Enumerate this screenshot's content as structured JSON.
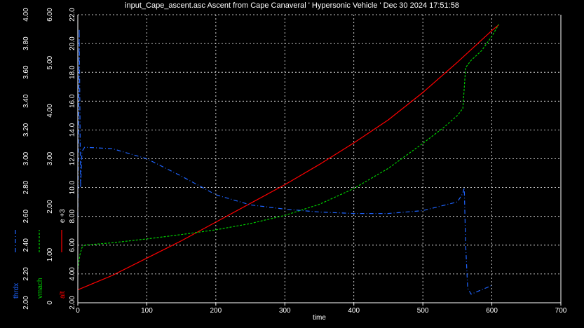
{
  "chart_data": {
    "type": "line",
    "title": "input_Cape_ascent.asc Ascent from Cape Canaveral ' Hypersonic Vehicle ' Dec 30 2024 17:51:58",
    "xlabel": "time",
    "xlim": [
      0,
      700
    ],
    "x_ticks": [
      "0",
      "100",
      "200",
      "300",
      "400",
      "500",
      "600",
      "700"
    ],
    "grid": true,
    "colors": {
      "background": "#000000",
      "axes": "#ffffff",
      "grid": "#ffffff",
      "alt": "#ff0000",
      "vmach": "#00cc00",
      "thrdx": "#1e64ff"
    },
    "axes": [
      {
        "id": "thrdx",
        "label": "thrdx",
        "legend_style": "dash-dot",
        "color": "#1e64ff",
        "lim": [
          2.0,
          4.0
        ],
        "ticks": [
          "2.00",
          "2.20",
          "2.40",
          "2.60",
          "2.80",
          "3.00",
          "3.20",
          "3.40",
          "3.60",
          "3.80",
          "4.00"
        ]
      },
      {
        "id": "vmach",
        "label": "vmach",
        "legend_style": "dashed",
        "color": "#00cc00",
        "lim": [
          0,
          6
        ],
        "ticks": [
          "0",
          "1.00",
          "2.00",
          "3.00",
          "4.00",
          "5.00",
          "6.00"
        ]
      },
      {
        "id": "alt",
        "label": "alt",
        "multiplier": "e +3",
        "legend_style": "solid",
        "color": "#ff0000",
        "lim": [
          2,
          22
        ],
        "ticks": [
          "2.00",
          "4.00",
          "6.00",
          "8.00",
          "10.0",
          "12.0",
          "14.0",
          "16.0",
          "18.0",
          "20.0",
          "22.0"
        ]
      }
    ],
    "series": [
      {
        "name": "alt",
        "axis": "alt",
        "style": "solid",
        "x": [
          0,
          50,
          100,
          150,
          200,
          250,
          300,
          350,
          400,
          450,
          500,
          550,
          600,
          610
        ],
        "y": [
          2.9,
          3.9,
          5.1,
          6.3,
          7.6,
          8.9,
          10.2,
          11.6,
          13.1,
          14.7,
          16.6,
          18.7,
          20.9,
          21.3
        ]
      },
      {
        "name": "vmach",
        "axis": "vmach",
        "style": "dashed",
        "x": [
          0,
          3,
          6,
          10,
          50,
          100,
          150,
          200,
          250,
          300,
          350,
          400,
          450,
          500,
          530,
          550,
          558,
          562,
          570,
          585,
          600,
          610
        ],
        "y": [
          0.7,
          1.0,
          1.15,
          1.2,
          1.25,
          1.33,
          1.42,
          1.52,
          1.65,
          1.82,
          2.05,
          2.38,
          2.8,
          3.32,
          3.65,
          3.9,
          4.05,
          4.9,
          5.05,
          5.25,
          5.55,
          5.8
        ]
      },
      {
        "name": "thrdx",
        "axis": "thrdx",
        "style": "dash-dot",
        "x": [
          0,
          2,
          4,
          6,
          10,
          50,
          100,
          150,
          200,
          250,
          300,
          350,
          400,
          450,
          500,
          550,
          558,
          560,
          562,
          565,
          570,
          580,
          600
        ],
        "y": [
          2.6,
          3.9,
          2.8,
          3.05,
          3.08,
          3.07,
          3.0,
          2.88,
          2.75,
          2.68,
          2.65,
          2.63,
          2.62,
          2.62,
          2.64,
          2.7,
          2.76,
          2.8,
          2.4,
          2.1,
          2.06,
          2.08,
          2.12
        ]
      }
    ]
  }
}
